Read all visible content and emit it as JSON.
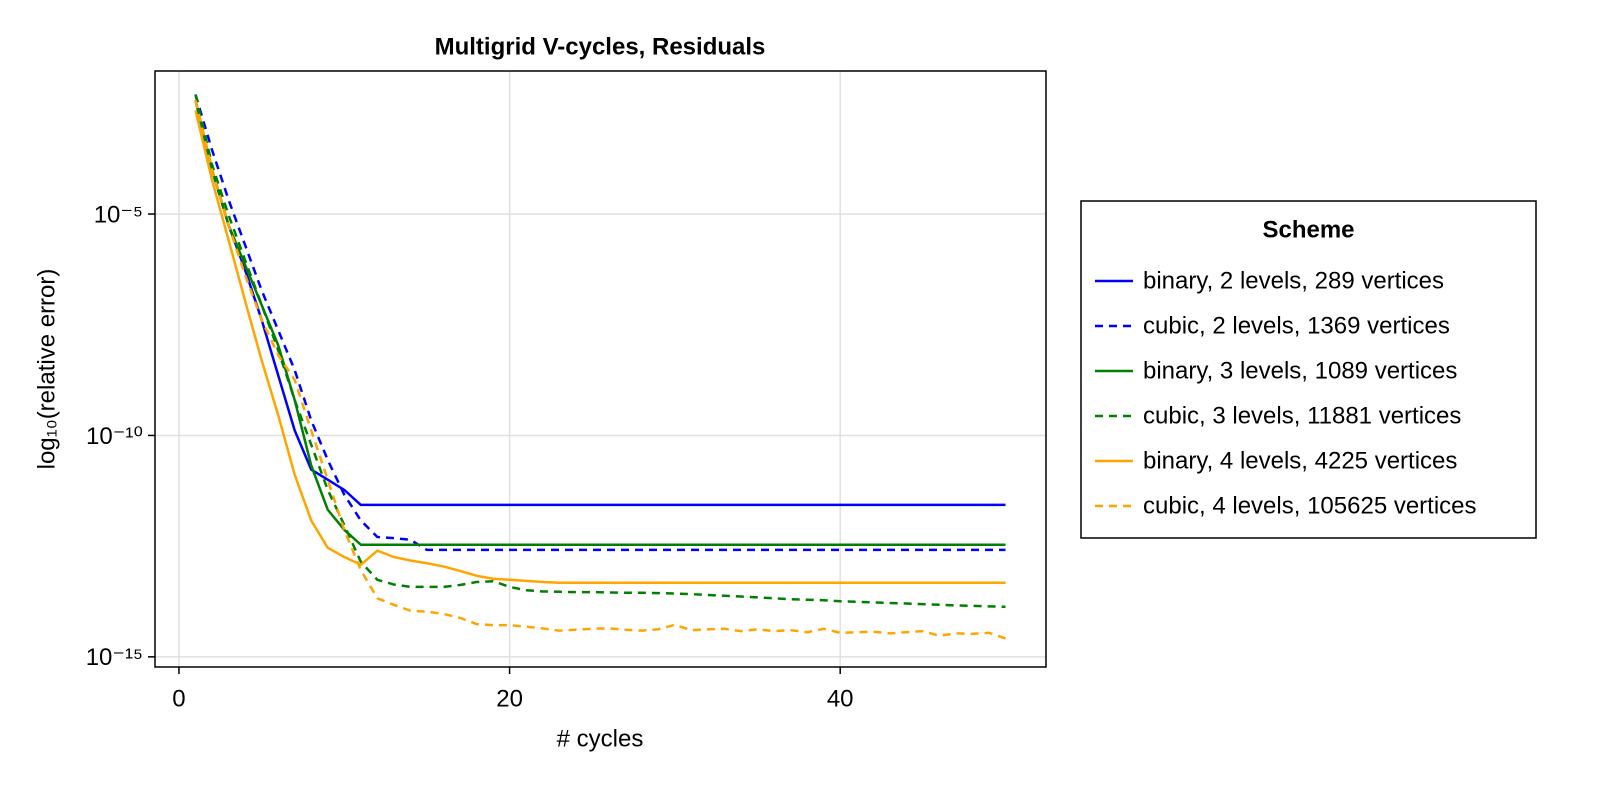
{
  "chart_data": {
    "type": "line",
    "title": "Multigrid V-cycles, Residuals",
    "x_label": "# cycles",
    "y_label": "log₁₀(relative error)",
    "legend_title": "Scheme",
    "legend": "right",
    "grid": true,
    "ylog": true,
    "xlim": [
      -1.45,
      52.45
    ],
    "ylim": [
      5.9e-16,
      0.017
    ],
    "xticks": [
      0,
      20,
      40
    ],
    "yticks": [
      {
        "value": 1e-05,
        "label": "10⁻⁵"
      },
      {
        "value": 1e-10,
        "label": "10⁻¹⁰"
      },
      {
        "value": 1e-15,
        "label": "10⁻¹⁵"
      }
    ],
    "x": [
      1,
      2,
      3,
      4,
      5,
      6,
      7,
      8,
      9,
      10,
      11,
      12,
      13,
      14,
      15,
      16,
      17,
      18,
      19,
      20,
      21,
      22,
      23,
      24,
      25,
      26,
      27,
      28,
      29,
      30,
      31,
      32,
      33,
      34,
      35,
      36,
      37,
      38,
      39,
      40,
      41,
      42,
      43,
      44,
      45,
      46,
      47,
      48,
      49,
      50
    ],
    "series": [
      {
        "name": "binary, 2 levels, 289 vertices",
        "color": "#0000ff",
        "linestyle": "solid",
        "values": [
          0.0037,
          0.0001,
          5.6e-06,
          5.5e-07,
          4.1e-08,
          2.3e-09,
          1.3e-10,
          1.7e-11,
          1e-11,
          5.9e-12,
          2.7e-12,
          2.7e-12,
          2.7e-12,
          2.7e-12,
          2.7e-12,
          2.7e-12,
          2.7e-12,
          2.7e-12,
          2.7e-12,
          2.7e-12,
          2.7e-12,
          2.7e-12,
          2.7e-12,
          2.7e-12,
          2.7e-12,
          2.7e-12,
          2.7e-12,
          2.7e-12,
          2.7e-12,
          2.7e-12,
          2.7e-12,
          2.7e-12,
          2.7e-12,
          2.7e-12,
          2.7e-12,
          2.7e-12,
          2.7e-12,
          2.7e-12,
          2.7e-12,
          2.7e-12,
          2.7e-12,
          2.7e-12,
          2.7e-12,
          2.7e-12,
          2.7e-12,
          2.7e-12,
          2.7e-12,
          2.7e-12,
          2.7e-12,
          2.7e-12
        ]
      },
      {
        "name": "cubic, 2 levels, 1369 vertices",
        "color": "#0000ff",
        "linestyle": "dashed",
        "values": [
          0.005,
          0.00028,
          2.1e-05,
          2e-06,
          1.9e-07,
          2.4e-08,
          3e-09,
          2.2e-10,
          2.8e-11,
          4.6e-12,
          1.2e-12,
          5.1e-13,
          4.8e-13,
          4.4e-13,
          2.6e-13,
          2.6e-13,
          2.6e-13,
          2.6e-13,
          2.6e-13,
          2.6e-13,
          2.6e-13,
          2.6e-13,
          2.6e-13,
          2.6e-13,
          2.6e-13,
          2.6e-13,
          2.6e-13,
          2.6e-13,
          2.6e-13,
          2.6e-13,
          2.6e-13,
          2.6e-13,
          2.6e-13,
          2.6e-13,
          2.6e-13,
          2.6e-13,
          2.6e-13,
          2.6e-13,
          2.6e-13,
          2.6e-13,
          2.6e-13,
          2.6e-13,
          2.6e-13,
          2.6e-13,
          2.6e-13,
          2.6e-13,
          2.6e-13,
          2.6e-13,
          2.6e-13,
          2.6e-13
        ]
      },
      {
        "name": "binary, 3 levels, 1089 vertices",
        "color": "#008000",
        "linestyle": "solid",
        "values": [
          0.0037,
          0.0001,
          5.6e-06,
          7.1e-07,
          8.9e-08,
          1.1e-08,
          6.3e-10,
          2.1e-11,
          2.1e-12,
          7.4e-13,
          3.4e-13,
          3.4e-13,
          3.4e-13,
          3.4e-13,
          3.4e-13,
          3.4e-13,
          3.4e-13,
          3.4e-13,
          3.4e-13,
          3.4e-13,
          3.4e-13,
          3.4e-13,
          3.4e-13,
          3.4e-13,
          3.4e-13,
          3.4e-13,
          3.4e-13,
          3.4e-13,
          3.4e-13,
          3.4e-13,
          3.4e-13,
          3.4e-13,
          3.4e-13,
          3.4e-13,
          3.4e-13,
          3.4e-13,
          3.4e-13,
          3.4e-13,
          3.4e-13,
          3.4e-13,
          3.4e-13,
          3.4e-13,
          3.4e-13,
          3.4e-13,
          3.4e-13,
          3.4e-13,
          3.4e-13,
          3.4e-13,
          3.4e-13,
          3.4e-13
        ]
      },
      {
        "name": "cubic, 3 levels, 11881 vertices",
        "color": "#008000",
        "linestyle": "dashed",
        "values": [
          0.005,
          0.00013,
          9.5e-06,
          9.1e-07,
          8.9e-08,
          8.5e-09,
          6.3e-10,
          6.2e-11,
          5.9e-12,
          9.5e-13,
          1.4e-13,
          5.5e-14,
          4.3e-14,
          3.8e-14,
          3.8e-14,
          3.8e-14,
          4.2e-14,
          4.9e-14,
          5.1e-14,
          3.8e-14,
          3.2e-14,
          3e-14,
          2.95e-14,
          2.9e-14,
          2.9e-14,
          2.85e-14,
          2.8e-14,
          2.8e-14,
          2.75e-14,
          2.7e-14,
          2.6e-14,
          2.5e-14,
          2.4e-14,
          2.3e-14,
          2.2e-14,
          2.1e-14,
          2e-14,
          1.95e-14,
          1.9e-14,
          1.8e-14,
          1.75e-14,
          1.7e-14,
          1.65e-14,
          1.6e-14,
          1.55e-14,
          1.5e-14,
          1.45e-14,
          1.42e-14,
          1.38e-14,
          1.35e-14
        ]
      },
      {
        "name": "binary, 4 levels, 4225 vertices",
        "color": "#ffa500",
        "linestyle": "solid",
        "values": [
          0.0022,
          5.9e-05,
          2.6e-06,
          1.1e-07,
          5e-09,
          2.9e-10,
          1.3e-11,
          1.2e-12,
          2.9e-13,
          1.8e-13,
          1.2e-13,
          2.5e-13,
          1.8e-13,
          1.5e-13,
          1.3e-13,
          1.1e-13,
          8.7e-14,
          6.8e-14,
          5.8e-14,
          5.5e-14,
          5.2e-14,
          4.9e-14,
          4.7e-14,
          4.7e-14,
          4.7e-14,
          4.7e-14,
          4.7e-14,
          4.7e-14,
          4.7e-14,
          4.7e-14,
          4.7e-14,
          4.7e-14,
          4.7e-14,
          4.7e-14,
          4.7e-14,
          4.7e-14,
          4.7e-14,
          4.7e-14,
          4.7e-14,
          4.7e-14,
          4.7e-14,
          4.7e-14,
          4.7e-14,
          4.7e-14,
          4.7e-14,
          4.7e-14,
          4.7e-14,
          4.7e-14,
          4.7e-14,
          4.7e-14
        ]
      },
      {
        "name": "cubic, 4 levels, 105625 vertices",
        "color": "#ffa500",
        "linestyle": "dashed",
        "values": [
          0.0037,
          0.0001,
          5.6e-06,
          4.2e-07,
          4.1e-08,
          6.6e-09,
          1.8e-09,
          1.3e-10,
          1e-11,
          7.4e-13,
          9.1e-14,
          2.1e-14,
          1.5e-14,
          1.1e-14,
          1.05e-14,
          9.3e-15,
          7.6e-15,
          5.5e-15,
          5.2e-15,
          5.2e-15,
          4.8e-15,
          4.4e-15,
          3.9e-15,
          4.1e-15,
          4.3e-15,
          4.4e-15,
          4.1e-15,
          3.9e-15,
          4.2e-15,
          5.3e-15,
          4e-15,
          4.2e-15,
          4.3e-15,
          3.8e-15,
          4.2e-15,
          3.8e-15,
          4e-15,
          3.6e-15,
          4.3e-15,
          3.5e-15,
          3.6e-15,
          3.7e-15,
          3.4e-15,
          3.6e-15,
          3.8e-15,
          3e-15,
          3.4e-15,
          3.3e-15,
          3.5e-15,
          2.6e-15
        ]
      }
    ]
  }
}
